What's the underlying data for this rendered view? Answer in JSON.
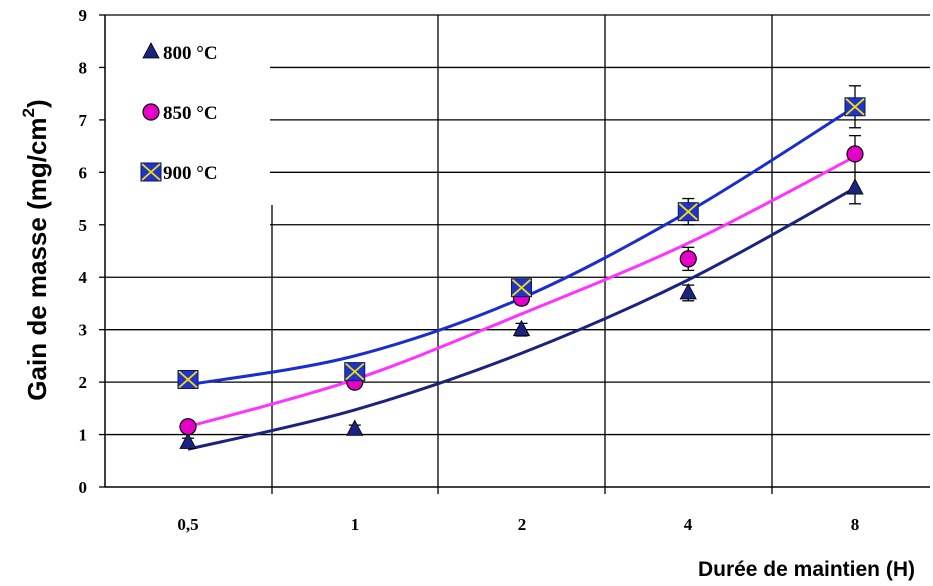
{
  "chart_data": {
    "type": "scatter",
    "xlabel": "Durée de maintien  (H)",
    "ylabel": "Gain de masse (mg/cm",
    "ylabel_sup": "2",
    "ylabel_close": ")",
    "categories": [
      "0,5",
      "1",
      "2",
      "4",
      "8"
    ],
    "x": [
      0.5,
      1,
      2,
      4,
      8
    ],
    "x_scale": "log2",
    "ylim": [
      0,
      9
    ],
    "yticks": [
      "0",
      "1",
      "2",
      "3",
      "4",
      "5",
      "6",
      "7",
      "8",
      "9"
    ],
    "grid": true,
    "legend_position": "top-left",
    "series": [
      {
        "name": "800 °C",
        "marker": "triangle",
        "color": "#1a237e",
        "line_color": "#1a237e",
        "values": [
          0.85,
          1.1,
          3.0,
          3.7,
          5.7
        ],
        "errors": [
          0.08,
          0.08,
          0.12,
          0.15,
          0.3
        ],
        "fit": [
          0.72,
          1.47,
          2.55,
          3.95,
          5.7
        ]
      },
      {
        "name": "850 °C",
        "marker": "circle",
        "color": "#e600c8",
        "line_color": "#ff33ff",
        "values": [
          1.15,
          2.0,
          3.6,
          4.35,
          6.35
        ],
        "errors": [
          0.05,
          0.07,
          0.12,
          0.22,
          0.35
        ],
        "fit": [
          1.15,
          2.05,
          3.3,
          4.65,
          6.3
        ]
      },
      {
        "name": "900 °C",
        "marker": "crossed-square",
        "color": "#2233cc",
        "line_color": "#1a2ed0",
        "values": [
          2.05,
          2.2,
          3.8,
          5.25,
          7.25
        ],
        "errors": [
          0.07,
          0.1,
          0.12,
          0.25,
          0.4
        ],
        "fit": [
          1.95,
          2.5,
          3.6,
          5.25,
          7.25
        ]
      }
    ]
  }
}
